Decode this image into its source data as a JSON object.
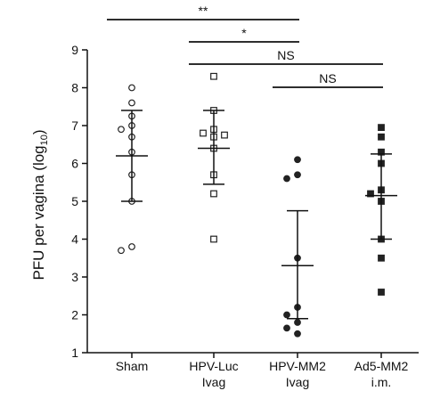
{
  "chart_data": {
    "type": "scatter",
    "ylabel_main": "PFU per vagina (log",
    "ylabel_sub": "10",
    "ylabel_close": ")",
    "ylim": [
      1,
      9
    ],
    "yticks": [
      1,
      2,
      3,
      4,
      5,
      6,
      7,
      8,
      9
    ],
    "grid": false,
    "groups": [
      {
        "label_lines": [
          "Sham",
          ""
        ],
        "marker": "circle-open",
        "values": [
          8.0,
          7.6,
          7.25,
          7.0,
          6.9,
          6.7,
          6.3,
          5.7,
          5.0,
          3.8,
          3.7
        ],
        "mean": 6.2,
        "upper": 7.4,
        "lower": 5.0
      },
      {
        "label_lines": [
          "HPV-Luc",
          "Ivag"
        ],
        "marker": "square-open",
        "values": [
          8.3,
          7.4,
          6.9,
          6.8,
          6.75,
          6.7,
          6.4,
          5.7,
          5.2,
          4.0
        ],
        "mean": 6.4,
        "upper": 7.4,
        "lower": 5.45
      },
      {
        "label_lines": [
          "HPV-MM2",
          "Ivag"
        ],
        "marker": "circle-filled",
        "values": [
          6.1,
          5.7,
          5.6,
          3.5,
          2.2,
          2.0,
          1.8,
          1.65,
          1.5
        ],
        "mean": 3.3,
        "upper": 4.75,
        "lower": 1.9
      },
      {
        "label_lines": [
          "Ad5-MM2",
          "i.m."
        ],
        "marker": "square-filled",
        "values": [
          6.95,
          6.7,
          6.3,
          6.0,
          5.3,
          5.2,
          5.0,
          4.0,
          3.5,
          2.6
        ],
        "mean": 5.15,
        "upper": 6.25,
        "lower": 4.0
      }
    ],
    "significance": [
      {
        "from": 0,
        "to": 2,
        "label": "**"
      },
      {
        "from": 1,
        "to": 2,
        "label": "*"
      },
      {
        "from": 1,
        "to": 3,
        "label": "NS"
      },
      {
        "from": 2,
        "to": 3,
        "label": "NS"
      }
    ]
  }
}
